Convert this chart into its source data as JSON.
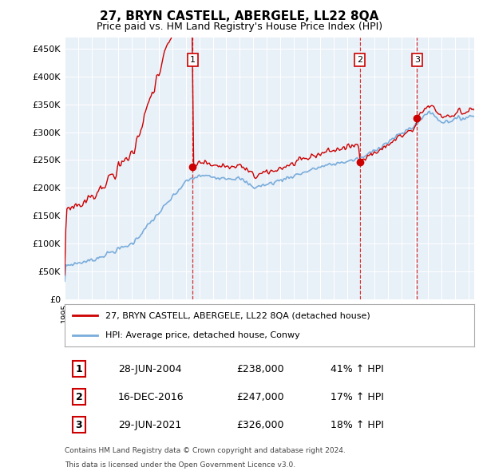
{
  "title": "27, BRYN CASTELL, ABERGELE, LL22 8QA",
  "subtitle": "Price paid vs. HM Land Registry's House Price Index (HPI)",
  "ylabel_ticks": [
    "£0",
    "£50K",
    "£100K",
    "£150K",
    "£200K",
    "£250K",
    "£300K",
    "£350K",
    "£400K",
    "£450K"
  ],
  "ytick_values": [
    0,
    50000,
    100000,
    150000,
    200000,
    250000,
    300000,
    350000,
    400000,
    450000
  ],
  "ylim": [
    0,
    470000
  ],
  "legend_line1": "27, BRYN CASTELL, ABERGELE, LL22 8QA (detached house)",
  "legend_line2": "HPI: Average price, detached house, Conwy",
  "table_rows": [
    [
      "1",
      "28-JUN-2004",
      "£238,000",
      "41% ↑ HPI"
    ],
    [
      "2",
      "16-DEC-2016",
      "£247,000",
      "17% ↑ HPI"
    ],
    [
      "3",
      "29-JUN-2021",
      "£326,000",
      "18% ↑ HPI"
    ]
  ],
  "footnote1": "Contains HM Land Registry data © Crown copyright and database right 2024.",
  "footnote2": "This data is licensed under the Open Government Licence v3.0.",
  "sale_markers": [
    {
      "label": "1",
      "date_idx": 114,
      "price": 238000
    },
    {
      "label": "2",
      "date_idx": 263,
      "price": 247000
    },
    {
      "label": "3",
      "date_idx": 314,
      "price": 326000
    }
  ],
  "vline_dates": [
    114,
    263,
    314
  ],
  "red_color": "#cc0000",
  "blue_color": "#7aaddb",
  "plot_bg_color": "#e8f0f8",
  "background_color": "#ffffff",
  "grid_color": "#ffffff"
}
